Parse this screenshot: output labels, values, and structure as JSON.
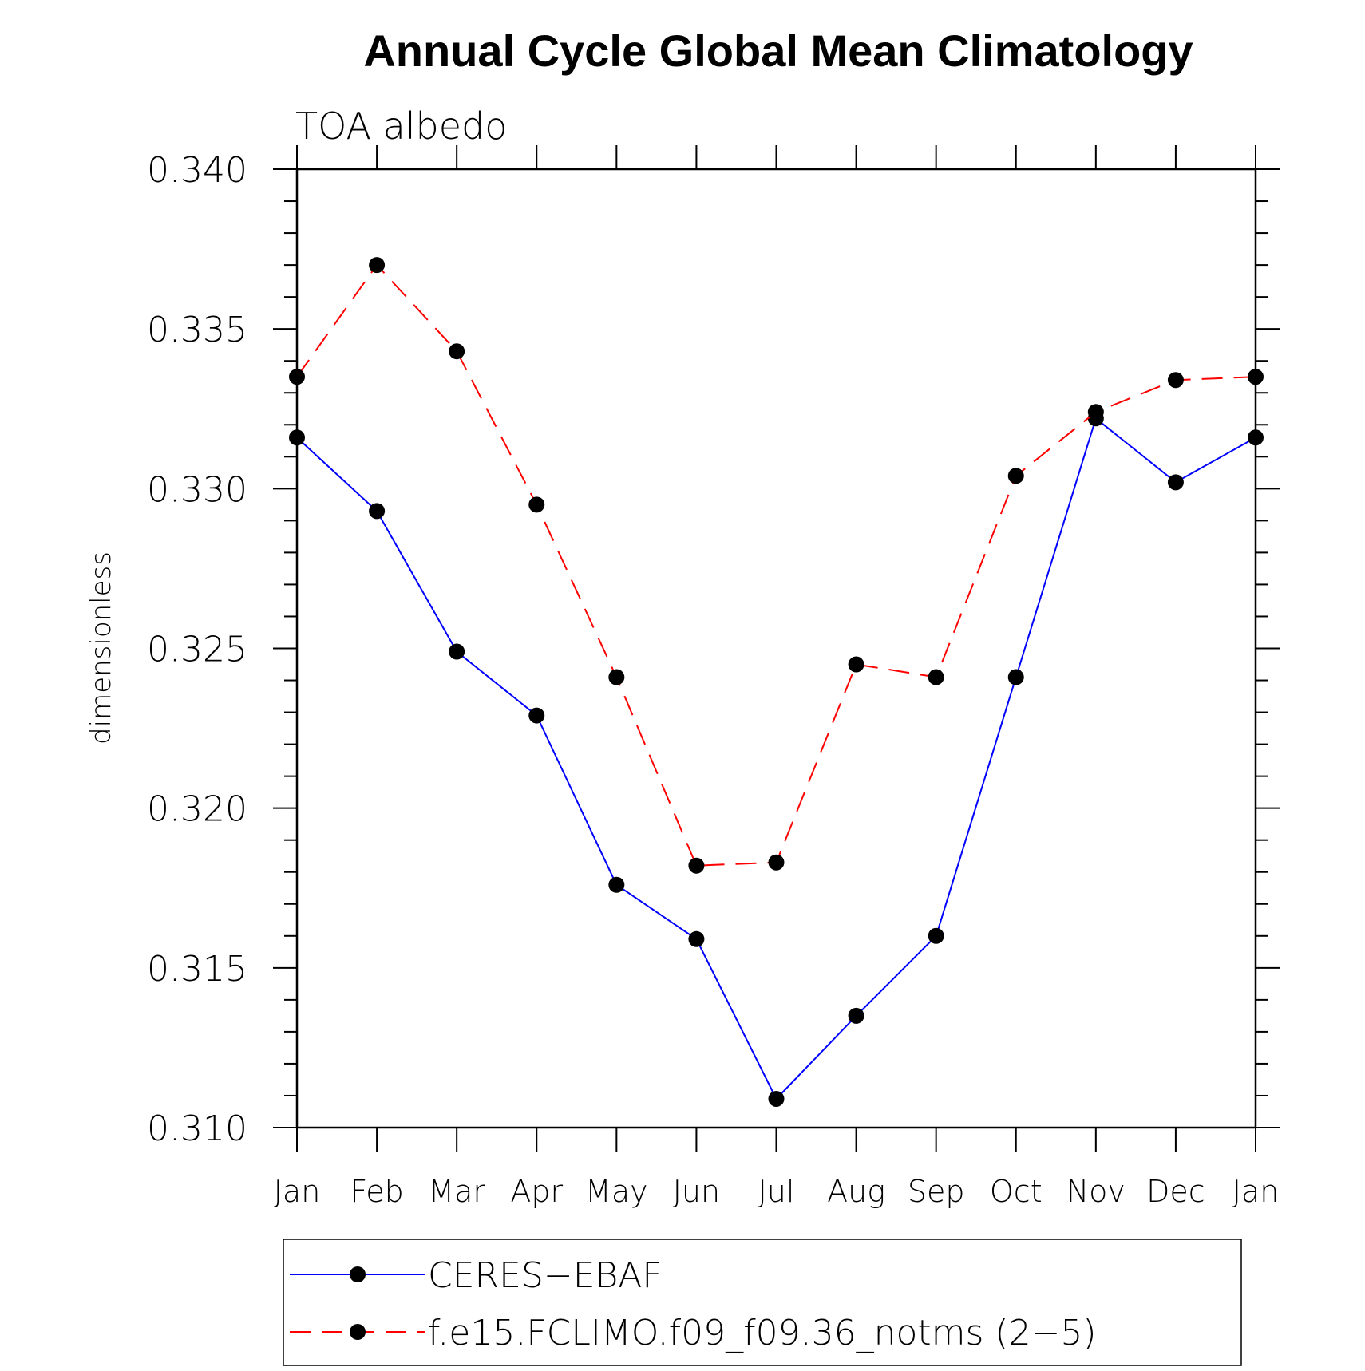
{
  "chart_data": {
    "type": "line",
    "title": "Annual Cycle Global Mean Climatology",
    "subtitle": "TOA albedo",
    "xlabel": "",
    "ylabel": "dimensionless",
    "categories": [
      "Jan",
      "Feb",
      "Mar",
      "Apr",
      "May",
      "Jun",
      "Jul",
      "Aug",
      "Sep",
      "Oct",
      "Nov",
      "Dec",
      "Jan"
    ],
    "ylim": [
      0.31,
      0.34
    ],
    "yticks": [
      "0.310",
      "0.315",
      "0.320",
      "0.325",
      "0.330",
      "0.335",
      "0.340"
    ],
    "series": [
      {
        "name": "CERES−EBAF",
        "color": "#0000ff",
        "line_style": "solid",
        "marker": "filled-circle",
        "values": [
          0.3316,
          0.3293,
          0.3249,
          0.3229,
          0.3176,
          0.3159,
          0.3109,
          0.3135,
          0.316,
          0.3241,
          0.3322,
          0.3302,
          0.3316
        ]
      },
      {
        "name": "f.e15.FCLIMO.f09_f09.36_notms (2−5)",
        "color": "#ff0000",
        "line_style": "dashed",
        "marker": "filled-circle",
        "values": [
          0.3335,
          0.337,
          0.3343,
          0.3295,
          0.3241,
          0.3182,
          0.3183,
          0.3245,
          0.3241,
          0.3304,
          0.3324,
          0.3334,
          0.3335
        ]
      }
    ],
    "grid": false,
    "legend_position": "bottom"
  }
}
